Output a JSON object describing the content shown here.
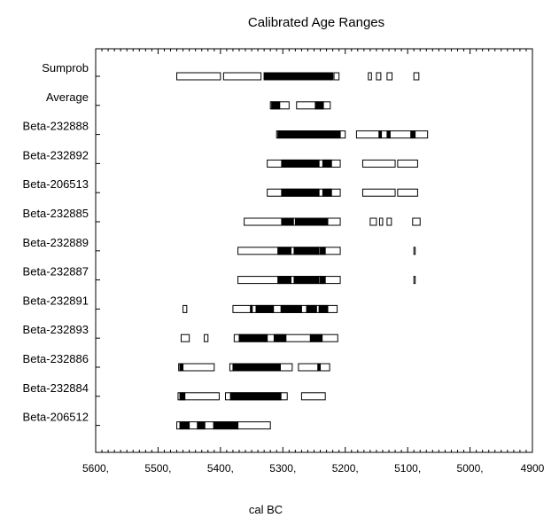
{
  "chart_data": {
    "type": "range",
    "title": "Calibrated Age Ranges",
    "xlabel": "cal BC",
    "xlim": [
      5600,
      4900
    ],
    "x_reversed": true,
    "x_ticks": [
      5600,
      5500,
      5400,
      5300,
      5200,
      5100,
      5000,
      4900
    ],
    "x_tick_labels": [
      "5600,",
      "5500,",
      "5400,",
      "5300,",
      "5200,",
      "5100,",
      "5000,",
      "4900"
    ],
    "grid": false,
    "rows": [
      {
        "name": "Sumprob",
        "open": [
          [
            5470,
            5400
          ],
          [
            5395,
            5335
          ],
          [
            5330,
            5220
          ],
          [
            5218,
            5210
          ],
          [
            5163,
            5158
          ],
          [
            5150,
            5143
          ],
          [
            5133,
            5125
          ],
          [
            5090,
            5082
          ]
        ],
        "filled": [
          [
            5330,
            5220
          ]
        ]
      },
      {
        "name": "Average",
        "open": [
          [
            5320,
            5290
          ],
          [
            5278,
            5224
          ]
        ],
        "filled": [
          [
            5318,
            5305
          ],
          [
            5248,
            5235
          ]
        ]
      },
      {
        "name": "Beta-232888",
        "open": [
          [
            5310,
            5200
          ],
          [
            5182,
            5068
          ]
        ],
        "filled": [
          [
            5308,
            5208
          ],
          [
            5146,
            5142
          ],
          [
            5133,
            5128
          ],
          [
            5095,
            5088
          ]
        ]
      },
      {
        "name": "Beta-232892",
        "open": [
          [
            5325,
            5208
          ],
          [
            5172,
            5120
          ],
          [
            5116,
            5084
          ]
        ],
        "filled": [
          [
            5302,
            5242
          ],
          [
            5236,
            5222
          ]
        ]
      },
      {
        "name": "Beta-206513",
        "open": [
          [
            5325,
            5208
          ],
          [
            5172,
            5120
          ],
          [
            5116,
            5084
          ]
        ],
        "filled": [
          [
            5302,
            5242
          ],
          [
            5236,
            5222
          ]
        ]
      },
      {
        "name": "Beta-232885",
        "open": [
          [
            5362,
            5208
          ],
          [
            5160,
            5150
          ],
          [
            5145,
            5140
          ],
          [
            5133,
            5126
          ],
          [
            5092,
            5080
          ]
        ],
        "filled": [
          [
            5302,
            5283
          ],
          [
            5280,
            5228
          ]
        ]
      },
      {
        "name": "Beta-232889",
        "open": [
          [
            5372,
            5208
          ],
          [
            5090,
            5088
          ]
        ],
        "filled": [
          [
            5308,
            5287
          ],
          [
            5282,
            5242
          ],
          [
            5240,
            5232
          ]
        ]
      },
      {
        "name": "Beta-232887",
        "open": [
          [
            5372,
            5208
          ],
          [
            5090,
            5088
          ]
        ],
        "filled": [
          [
            5308,
            5287
          ],
          [
            5282,
            5242
          ],
          [
            5240,
            5232
          ]
        ]
      },
      {
        "name": "Beta-232891",
        "open": [
          [
            5460,
            5454
          ],
          [
            5380,
            5213
          ]
        ],
        "filled": [
          [
            5352,
            5349
          ],
          [
            5343,
            5315
          ],
          [
            5303,
            5270
          ],
          [
            5262,
            5246
          ],
          [
            5242,
            5228
          ]
        ]
      },
      {
        "name": "Beta-232893",
        "open": [
          [
            5463,
            5450
          ],
          [
            5426,
            5420
          ],
          [
            5378,
            5212
          ]
        ],
        "filled": [
          [
            5370,
            5325
          ],
          [
            5314,
            5295
          ],
          [
            5256,
            5237
          ]
        ]
      },
      {
        "name": "Beta-232886",
        "open": [
          [
            5467,
            5410
          ],
          [
            5385,
            5285
          ],
          [
            5275,
            5225
          ]
        ],
        "filled": [
          [
            5465,
            5460
          ],
          [
            5380,
            5304
          ],
          [
            5244,
            5240
          ]
        ]
      },
      {
        "name": "Beta-232884",
        "open": [
          [
            5468,
            5402
          ],
          [
            5392,
            5293
          ],
          [
            5270,
            5232
          ]
        ],
        "filled": [
          [
            5465,
            5457
          ],
          [
            5384,
            5303
          ]
        ]
      },
      {
        "name": "Beta-206512",
        "open": [
          [
            5470,
            5320
          ]
        ],
        "filled": [
          [
            5465,
            5450
          ],
          [
            5437,
            5425
          ],
          [
            5411,
            5372
          ]
        ]
      }
    ]
  }
}
